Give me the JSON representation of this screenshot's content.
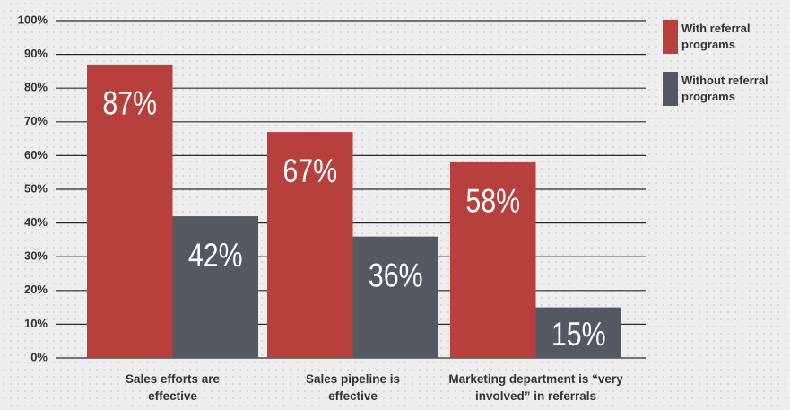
{
  "chart_data": {
    "type": "bar",
    "categories": [
      "Sales efforts are effective",
      "Sales pipeline is effective",
      "Marketing department is “very involved” in referrals"
    ],
    "series": [
      {
        "name": "With referral programs",
        "color": "#b8403c",
        "values": [
          87,
          67,
          58
        ],
        "value_labels": [
          "87%",
          "67%",
          "58%"
        ]
      },
      {
        "name": "Without referral programs",
        "color": "#545861",
        "values": [
          42,
          36,
          15
        ],
        "value_labels": [
          "42%",
          "36%",
          "15%"
        ]
      }
    ],
    "ylim": [
      0,
      100
    ],
    "yticks": [
      {
        "value": 0,
        "label": "0%"
      },
      {
        "value": 10,
        "label": "10%"
      },
      {
        "value": 20,
        "label": "20%"
      },
      {
        "value": 30,
        "label": "30%"
      },
      {
        "value": 40,
        "label": "40%"
      },
      {
        "value": 50,
        "label": "50%"
      },
      {
        "value": 60,
        "label": "60%"
      },
      {
        "value": 70,
        "label": "70%"
      },
      {
        "value": 80,
        "label": "80%"
      },
      {
        "value": 90,
        "label": "90%"
      },
      {
        "value": 100,
        "label": "100%"
      }
    ],
    "grid": true,
    "legend": "right"
  }
}
